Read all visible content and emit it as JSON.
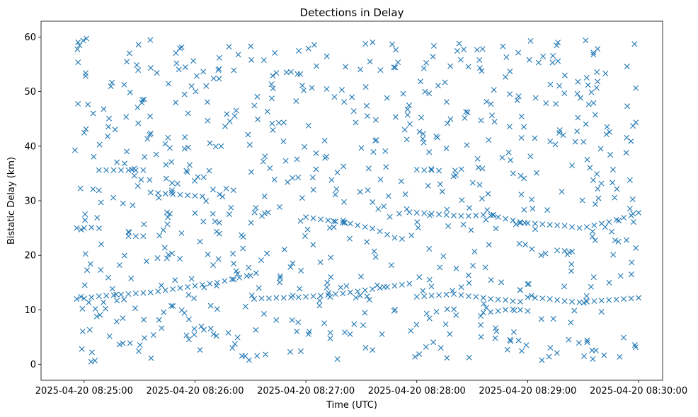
{
  "chart_data": {
    "type": "scatter",
    "title": "Detections in Delay",
    "xlabel": "Time (UTC)",
    "ylabel": "Bistatic Delay (km)",
    "x_tick_labels": [
      "2025-04-20 08:25:00",
      "2025-04-20 08:26:00",
      "2025-04-20 08:27:00",
      "2025-04-20 08:28:00",
      "2025-04-20 08:29:00",
      "2025-04-20 08:30:00"
    ],
    "x_ticks_seconds_after_0825": [
      0,
      60,
      120,
      180,
      240,
      300
    ],
    "xlim_seconds_after_0825": [
      -23.3,
      313.0
    ],
    "y_ticks": [
      0,
      10,
      20,
      30,
      40,
      50,
      60
    ],
    "ylim": [
      -2.9,
      62.9
    ],
    "marker": "x",
    "color": "#1f77b4",
    "grid": false,
    "approximate_note": "Individual detection points estimated from the image; clustered tracks plus scattered clutter.",
    "tracks": [
      {
        "points": [
          [
            -4,
            12.0
          ],
          [
            0,
            12.1
          ],
          [
            4,
            12.3
          ],
          [
            8,
            12.5
          ],
          [
            12,
            12.6
          ],
          [
            16,
            12.7
          ],
          [
            20,
            12.8
          ],
          [
            24,
            12.9
          ],
          [
            28,
            13.0
          ],
          [
            32,
            13.1
          ],
          [
            36,
            13.2
          ],
          [
            40,
            13.4
          ],
          [
            44,
            13.6
          ],
          [
            48,
            13.8
          ],
          [
            52,
            14.0
          ],
          [
            56,
            14.2
          ],
          [
            60,
            14.4
          ],
          [
            64,
            14.6
          ],
          [
            68,
            14.8
          ],
          [
            72,
            15.0
          ],
          [
            76,
            15.3
          ],
          [
            80,
            15.6
          ],
          [
            84,
            15.9
          ],
          [
            88,
            16.2
          ],
          [
            90,
            16.3
          ]
        ]
      },
      {
        "points": [
          [
            92,
            12.0
          ],
          [
            96,
            12.1
          ],
          [
            100,
            12.1
          ],
          [
            104,
            12.2
          ],
          [
            108,
            12.2
          ],
          [
            112,
            12.3
          ],
          [
            116,
            12.3
          ],
          [
            120,
            12.4
          ],
          [
            124,
            12.5
          ],
          [
            128,
            12.6
          ],
          [
            132,
            12.7
          ],
          [
            136,
            12.9
          ],
          [
            140,
            13.0
          ],
          [
            144,
            13.2
          ],
          [
            148,
            13.4
          ],
          [
            152,
            13.6
          ],
          [
            156,
            13.8
          ],
          [
            160,
            14.0
          ],
          [
            164,
            14.2
          ],
          [
            168,
            14.4
          ],
          [
            172,
            14.6
          ],
          [
            176,
            14.8
          ],
          [
            180,
            12.4
          ],
          [
            184,
            12.5
          ],
          [
            188,
            12.6
          ],
          [
            192,
            12.7
          ],
          [
            196,
            12.8
          ],
          [
            200,
            12.9
          ],
          [
            204,
            12.7
          ],
          [
            208,
            12.5
          ],
          [
            212,
            12.4
          ],
          [
            216,
            12.2
          ],
          [
            220,
            12.0
          ],
          [
            224,
            11.9
          ],
          [
            228,
            11.8
          ],
          [
            232,
            11.6
          ],
          [
            236,
            11.5
          ],
          [
            240,
            12.3
          ],
          [
            244,
            12.2
          ],
          [
            248,
            12.1
          ],
          [
            252,
            12.0
          ],
          [
            256,
            11.8
          ],
          [
            260,
            11.6
          ],
          [
            264,
            11.5
          ],
          [
            268,
            11.4
          ],
          [
            272,
            11.5
          ],
          [
            276,
            11.6
          ],
          [
            280,
            11.7
          ],
          [
            284,
            11.8
          ],
          [
            288,
            11.9
          ],
          [
            292,
            12.0
          ],
          [
            296,
            12.1
          ],
          [
            300,
            12.2
          ]
        ]
      },
      {
        "points": [
          [
            8,
            35.6
          ],
          [
            12,
            35.6
          ],
          [
            16,
            35.6
          ],
          [
            20,
            35.6
          ],
          [
            24,
            35.6
          ],
          [
            28,
            35.6
          ],
          [
            32,
            35.6
          ],
          [
            36,
            31.5
          ],
          [
            40,
            31.4
          ],
          [
            44,
            31.3
          ],
          [
            48,
            31.2
          ],
          [
            52,
            31.1
          ],
          [
            56,
            31.0
          ],
          [
            60,
            30.9
          ],
          [
            64,
            30.8
          ]
        ]
      },
      {
        "points": [
          [
            180,
            35.7
          ],
          [
            184,
            35.6
          ],
          [
            188,
            35.6
          ],
          [
            192,
            35.5
          ],
          [
            176,
            27.9
          ],
          [
            180,
            27.8
          ],
          [
            184,
            27.7
          ],
          [
            188,
            27.6
          ],
          [
            192,
            27.5
          ],
          [
            196,
            27.4
          ],
          [
            200,
            27.3
          ],
          [
            204,
            27.2
          ],
          [
            208,
            27.2
          ],
          [
            212,
            27.3
          ],
          [
            216,
            27.4
          ],
          [
            220,
            27.3
          ],
          [
            224,
            27.0
          ],
          [
            228,
            26.7
          ],
          [
            232,
            26.4
          ],
          [
            236,
            26.1
          ],
          [
            240,
            25.9
          ],
          [
            244,
            25.8
          ],
          [
            248,
            25.7
          ],
          [
            252,
            25.6
          ],
          [
            256,
            25.5
          ],
          [
            260,
            25.4
          ],
          [
            264,
            25.2
          ],
          [
            268,
            25.0
          ],
          [
            272,
            25.2
          ],
          [
            276,
            25.5
          ],
          [
            280,
            25.8
          ],
          [
            284,
            26.1
          ],
          [
            288,
            26.5
          ],
          [
            292,
            26.9
          ],
          [
            296,
            27.3
          ],
          [
            300,
            27.8
          ]
        ]
      },
      {
        "points": [
          [
            120,
            27.0
          ],
          [
            124,
            26.8
          ],
          [
            128,
            26.6
          ],
          [
            132,
            26.4
          ],
          [
            136,
            26.2
          ],
          [
            140,
            26.0
          ],
          [
            144,
            25.8
          ],
          [
            148,
            25.5
          ],
          [
            152,
            25.2
          ],
          [
            156,
            24.9
          ],
          [
            160,
            24.4
          ],
          [
            164,
            23.8
          ],
          [
            168,
            23.2
          ],
          [
            172,
            23.0
          ]
        ]
      },
      {
        "points": [
          [
            -4,
            25.0
          ],
          [
            0,
            25.0
          ],
          [
            4,
            25.1
          ],
          [
            24,
            23.5
          ],
          [
            28,
            23.5
          ],
          [
            32,
            23.5
          ],
          [
            216,
            9.5
          ],
          [
            220,
            9.6
          ],
          [
            224,
            9.8
          ],
          [
            228,
            10.0
          ],
          [
            232,
            10.1
          ],
          [
            236,
            10.0
          ],
          [
            240,
            9.8
          ],
          [
            256,
            20.9
          ],
          [
            260,
            20.8
          ],
          [
            264,
            20.7
          ]
        ]
      }
    ],
    "scatter_seed": 20250420,
    "scatter_count": 720
  }
}
